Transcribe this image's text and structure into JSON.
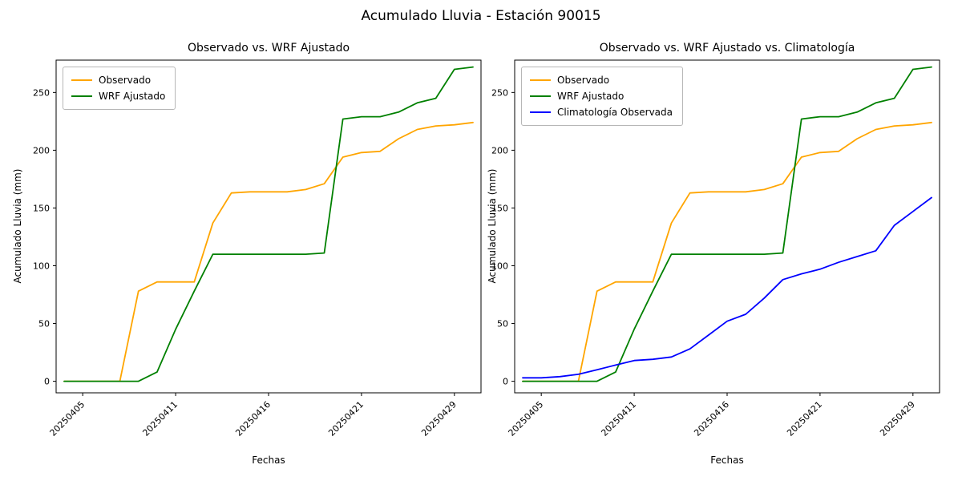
{
  "figure": {
    "title": "Acumulado Lluvia - Estación 90015"
  },
  "chart_data": [
    {
      "type": "line",
      "title": "Observado vs. WRF Ajustado",
      "xlabel": "Fechas",
      "ylabel": "Acumulado Lluvia (mm)",
      "x": [
        "20250404",
        "20250405",
        "20250406",
        "20250407",
        "20250408",
        "20250410",
        "20250411",
        "20250412",
        "20250413",
        "20250414",
        "20250415",
        "20250416",
        "20250417",
        "20250418",
        "20250419",
        "20250420",
        "20250421",
        "20250422",
        "20250423",
        "20250425",
        "20250427",
        "20250429",
        "20250430"
      ],
      "xtick_labels": [
        "20250405",
        "20250411",
        "20250416",
        "20250421",
        "20250429"
      ],
      "yticks": [
        0,
        50,
        100,
        150,
        200,
        250
      ],
      "ylim": [
        -10,
        278
      ],
      "grid": false,
      "legend_position": "upper-left",
      "series": [
        {
          "name": "Observado",
          "color": "#ffa500",
          "values": [
            0,
            0,
            0,
            0,
            78,
            86,
            86,
            86,
            137,
            163,
            164,
            164,
            164,
            166,
            171,
            194,
            198,
            199,
            210,
            218,
            221,
            222,
            224
          ]
        },
        {
          "name": "WRF Ajustado",
          "color": "#008000",
          "values": [
            0,
            0,
            0,
            0,
            0,
            8,
            45,
            78,
            110,
            110,
            110,
            110,
            110,
            110,
            111,
            227,
            229,
            229,
            233,
            241,
            245,
            270,
            272
          ]
        }
      ]
    },
    {
      "type": "line",
      "title": "Observado vs. WRF Ajustado vs. Climatología",
      "xlabel": "Fechas",
      "ylabel": "Acumulado Lluvia (mm)",
      "x": [
        "20250404",
        "20250405",
        "20250406",
        "20250407",
        "20250408",
        "20250410",
        "20250411",
        "20250412",
        "20250413",
        "20250414",
        "20250415",
        "20250416",
        "20250417",
        "20250418",
        "20250419",
        "20250420",
        "20250421",
        "20250422",
        "20250423",
        "20250425",
        "20250427",
        "20250429",
        "20250430"
      ],
      "xtick_labels": [
        "20250405",
        "20250411",
        "20250416",
        "20250421",
        "20250429"
      ],
      "yticks": [
        0,
        50,
        100,
        150,
        200,
        250
      ],
      "ylim": [
        -10,
        278
      ],
      "grid": false,
      "legend_position": "upper-left",
      "series": [
        {
          "name": "Observado",
          "color": "#ffa500",
          "values": [
            0,
            0,
            0,
            0,
            78,
            86,
            86,
            86,
            137,
            163,
            164,
            164,
            164,
            166,
            171,
            194,
            198,
            199,
            210,
            218,
            221,
            222,
            224
          ]
        },
        {
          "name": "WRF Ajustado",
          "color": "#008000",
          "values": [
            0,
            0,
            0,
            0,
            0,
            8,
            45,
            78,
            110,
            110,
            110,
            110,
            110,
            110,
            111,
            227,
            229,
            229,
            233,
            241,
            245,
            270,
            272
          ]
        },
        {
          "name": "Climatología Observada",
          "color": "#0000ff",
          "values": [
            3,
            3,
            4,
            6,
            10,
            14,
            18,
            19,
            21,
            28,
            40,
            52,
            58,
            72,
            88,
            93,
            97,
            103,
            108,
            113,
            135,
            147,
            159
          ]
        }
      ]
    }
  ]
}
